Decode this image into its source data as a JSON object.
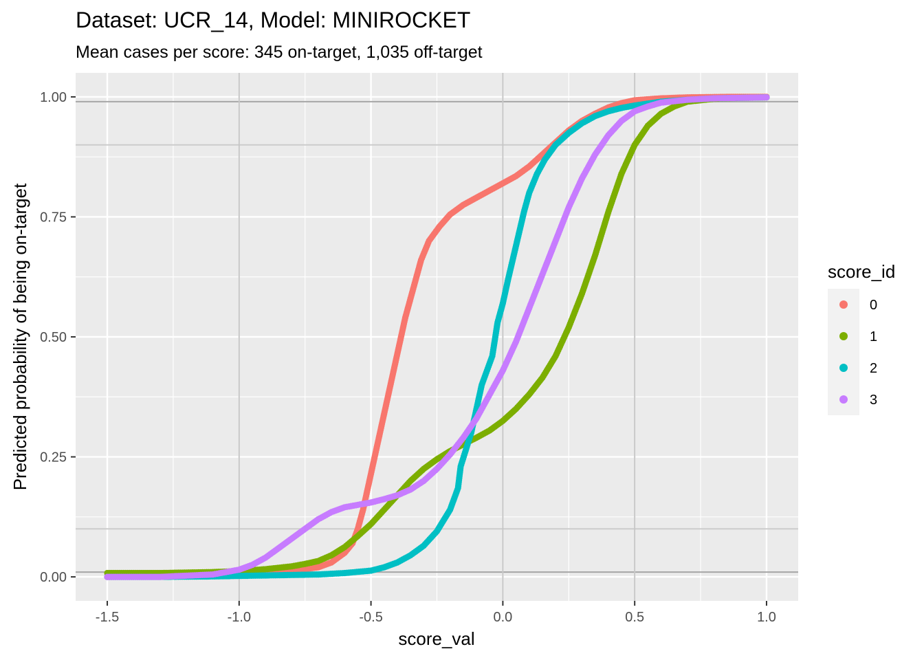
{
  "chart_data": {
    "type": "scatter",
    "title": "Dataset: UCR_14, Model: MINIROCKET",
    "subtitle": "Mean cases per score: 345 on-target, 1,035 off-target",
    "xlabel": "score_val",
    "ylabel": "Predicted probability of being on-target",
    "xlim": [
      -1.62,
      1.12
    ],
    "ylim": [
      -0.05,
      1.05
    ],
    "x_ticks": [
      -1.5,
      -1.0,
      -0.5,
      0.0,
      0.5,
      1.0
    ],
    "x_tick_labels": [
      "-1.5",
      "-1.0",
      "-0.5",
      "0.0",
      "0.5",
      "1.0"
    ],
    "y_ticks": [
      0.0,
      0.25,
      0.5,
      0.75,
      1.0
    ],
    "y_tick_labels": [
      "0.00",
      "0.25",
      "0.50",
      "0.75",
      "1.00"
    ],
    "reference_lines": [
      0.01,
      0.1,
      0.9,
      0.99
    ],
    "grid": true,
    "legend": {
      "title": "score_id",
      "position": "right"
    },
    "series": [
      {
        "name": "0",
        "color": "#F8766D",
        "points": [
          [
            -1.5,
            0.0
          ],
          [
            -1.3,
            0.001
          ],
          [
            -1.1,
            0.003
          ],
          [
            -1.0,
            0.005
          ],
          [
            -0.9,
            0.008
          ],
          [
            -0.8,
            0.013
          ],
          [
            -0.7,
            0.02
          ],
          [
            -0.65,
            0.03
          ],
          [
            -0.6,
            0.05
          ],
          [
            -0.57,
            0.07
          ],
          [
            -0.55,
            0.1
          ],
          [
            -0.53,
            0.14
          ],
          [
            -0.51,
            0.19
          ],
          [
            -0.49,
            0.24
          ],
          [
            -0.47,
            0.29
          ],
          [
            -0.45,
            0.34
          ],
          [
            -0.43,
            0.39
          ],
          [
            -0.41,
            0.44
          ],
          [
            -0.39,
            0.49
          ],
          [
            -0.37,
            0.54
          ],
          [
            -0.35,
            0.58
          ],
          [
            -0.33,
            0.62
          ],
          [
            -0.31,
            0.66
          ],
          [
            -0.28,
            0.7
          ],
          [
            -0.24,
            0.73
          ],
          [
            -0.2,
            0.755
          ],
          [
            -0.15,
            0.775
          ],
          [
            -0.1,
            0.79
          ],
          [
            -0.05,
            0.805
          ],
          [
            0.0,
            0.82
          ],
          [
            0.05,
            0.835
          ],
          [
            0.1,
            0.855
          ],
          [
            0.15,
            0.88
          ],
          [
            0.2,
            0.905
          ],
          [
            0.25,
            0.93
          ],
          [
            0.3,
            0.95
          ],
          [
            0.35,
            0.965
          ],
          [
            0.4,
            0.978
          ],
          [
            0.45,
            0.987
          ],
          [
            0.5,
            0.993
          ],
          [
            0.6,
            0.997
          ],
          [
            0.7,
            0.999
          ],
          [
            0.85,
            1.0
          ],
          [
            1.0,
            1.0
          ]
        ]
      },
      {
        "name": "1",
        "color": "#7CAE00",
        "points": [
          [
            -1.5,
            0.008
          ],
          [
            -1.3,
            0.008
          ],
          [
            -1.1,
            0.01
          ],
          [
            -1.0,
            0.012
          ],
          [
            -0.9,
            0.016
          ],
          [
            -0.8,
            0.022
          ],
          [
            -0.75,
            0.027
          ],
          [
            -0.7,
            0.033
          ],
          [
            -0.65,
            0.045
          ],
          [
            -0.6,
            0.062
          ],
          [
            -0.55,
            0.085
          ],
          [
            -0.5,
            0.11
          ],
          [
            -0.45,
            0.14
          ],
          [
            -0.4,
            0.17
          ],
          [
            -0.35,
            0.2
          ],
          [
            -0.3,
            0.225
          ],
          [
            -0.25,
            0.245
          ],
          [
            -0.2,
            0.262
          ],
          [
            -0.15,
            0.276
          ],
          [
            -0.1,
            0.29
          ],
          [
            -0.05,
            0.305
          ],
          [
            0.0,
            0.325
          ],
          [
            0.05,
            0.35
          ],
          [
            0.1,
            0.38
          ],
          [
            0.15,
            0.415
          ],
          [
            0.2,
            0.46
          ],
          [
            0.25,
            0.52
          ],
          [
            0.3,
            0.59
          ],
          [
            0.35,
            0.67
          ],
          [
            0.4,
            0.76
          ],
          [
            0.45,
            0.84
          ],
          [
            0.5,
            0.9
          ],
          [
            0.55,
            0.94
          ],
          [
            0.6,
            0.965
          ],
          [
            0.65,
            0.98
          ],
          [
            0.7,
            0.99
          ],
          [
            0.8,
            0.996
          ],
          [
            0.9,
            0.998
          ],
          [
            1.0,
            0.999
          ]
        ]
      },
      {
        "name": "2",
        "color": "#00BFC4",
        "points": [
          [
            -1.5,
            0.0
          ],
          [
            -1.3,
            0.0
          ],
          [
            -1.1,
            0.001
          ],
          [
            -1.0,
            0.002
          ],
          [
            -0.9,
            0.003
          ],
          [
            -0.8,
            0.004
          ],
          [
            -0.7,
            0.005
          ],
          [
            -0.6,
            0.008
          ],
          [
            -0.5,
            0.013
          ],
          [
            -0.45,
            0.02
          ],
          [
            -0.4,
            0.03
          ],
          [
            -0.35,
            0.045
          ],
          [
            -0.3,
            0.065
          ],
          [
            -0.25,
            0.095
          ],
          [
            -0.2,
            0.14
          ],
          [
            -0.17,
            0.185
          ],
          [
            -0.16,
            0.23
          ],
          [
            -0.12,
            0.3
          ],
          [
            -0.1,
            0.35
          ],
          [
            -0.08,
            0.4
          ],
          [
            -0.06,
            0.43
          ],
          [
            -0.04,
            0.46
          ],
          [
            -0.02,
            0.53
          ],
          [
            0.0,
            0.57
          ],
          [
            0.02,
            0.62
          ],
          [
            0.05,
            0.69
          ],
          [
            0.08,
            0.76
          ],
          [
            0.1,
            0.8
          ],
          [
            0.13,
            0.84
          ],
          [
            0.16,
            0.87
          ],
          [
            0.2,
            0.9
          ],
          [
            0.25,
            0.925
          ],
          [
            0.3,
            0.945
          ],
          [
            0.35,
            0.96
          ],
          [
            0.4,
            0.97
          ],
          [
            0.45,
            0.977
          ],
          [
            0.5,
            0.982
          ],
          [
            0.6,
            0.99
          ],
          [
            0.7,
            0.994
          ],
          [
            0.8,
            0.997
          ],
          [
            0.9,
            0.998
          ],
          [
            1.0,
            0.999
          ]
        ]
      },
      {
        "name": "3",
        "color": "#C77CFF",
        "points": [
          [
            -1.5,
            0.0
          ],
          [
            -1.3,
            0.0
          ],
          [
            -1.1,
            0.005
          ],
          [
            -1.05,
            0.01
          ],
          [
            -1.0,
            0.015
          ],
          [
            -0.95,
            0.025
          ],
          [
            -0.9,
            0.04
          ],
          [
            -0.85,
            0.06
          ],
          [
            -0.8,
            0.08
          ],
          [
            -0.75,
            0.1
          ],
          [
            -0.7,
            0.12
          ],
          [
            -0.65,
            0.135
          ],
          [
            -0.6,
            0.145
          ],
          [
            -0.55,
            0.15
          ],
          [
            -0.5,
            0.155
          ],
          [
            -0.45,
            0.162
          ],
          [
            -0.4,
            0.17
          ],
          [
            -0.35,
            0.182
          ],
          [
            -0.3,
            0.2
          ],
          [
            -0.25,
            0.225
          ],
          [
            -0.2,
            0.255
          ],
          [
            -0.15,
            0.29
          ],
          [
            -0.1,
            0.33
          ],
          [
            -0.05,
            0.38
          ],
          [
            0.0,
            0.43
          ],
          [
            0.05,
            0.49
          ],
          [
            0.1,
            0.56
          ],
          [
            0.15,
            0.63
          ],
          [
            0.2,
            0.7
          ],
          [
            0.25,
            0.77
          ],
          [
            0.3,
            0.83
          ],
          [
            0.35,
            0.88
          ],
          [
            0.4,
            0.92
          ],
          [
            0.45,
            0.95
          ],
          [
            0.5,
            0.97
          ],
          [
            0.55,
            0.98
          ],
          [
            0.6,
            0.988
          ],
          [
            0.7,
            0.994
          ],
          [
            0.8,
            0.997
          ],
          [
            0.9,
            0.998
          ],
          [
            1.0,
            0.999
          ]
        ]
      }
    ]
  }
}
